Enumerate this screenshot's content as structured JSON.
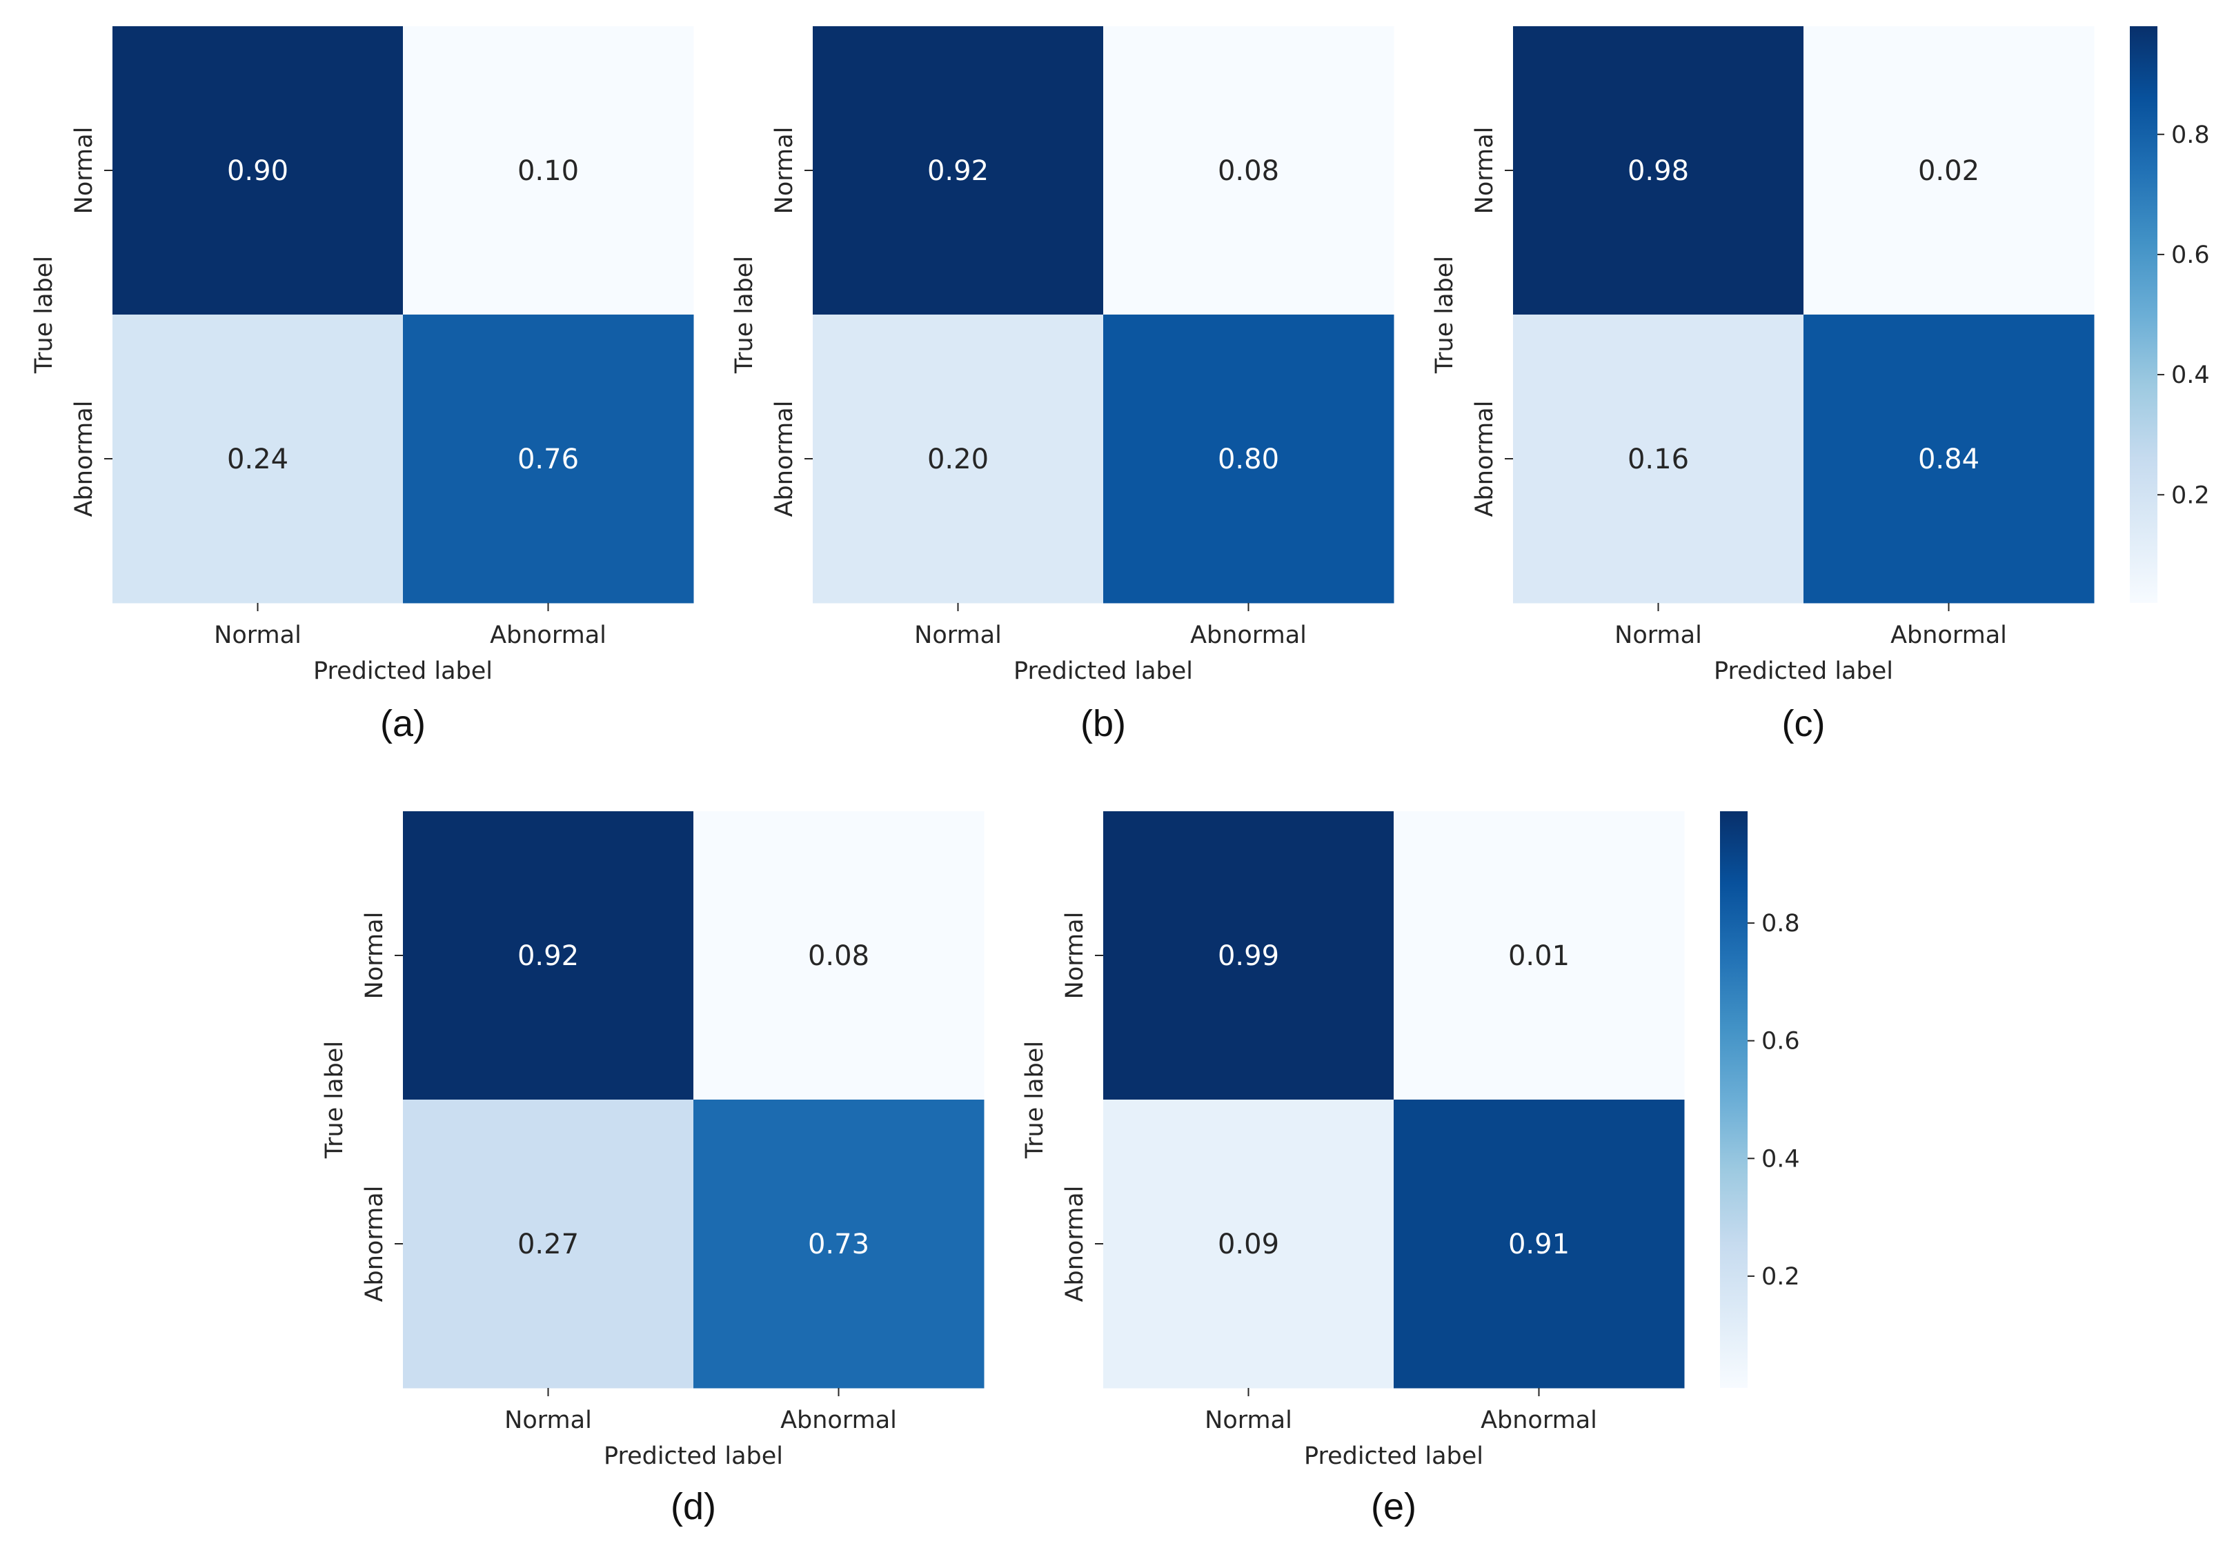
{
  "chart_data": [
    {
      "type": "heatmap",
      "panel": "(a)",
      "caption": "(a)",
      "rows": [
        "Normal",
        "Abnormal"
      ],
      "columns": [
        "Normal",
        "Abnormal"
      ],
      "values": [
        [
          0.9,
          0.1
        ],
        [
          0.24,
          0.76
        ]
      ],
      "labels": [
        [
          "0.90",
          "0.10"
        ],
        [
          "0.24",
          "0.76"
        ]
      ],
      "xlabel": "Predicted label",
      "ylabel": "True label",
      "colormap": "Blues"
    },
    {
      "type": "heatmap",
      "panel": "(b)",
      "caption": "(b)",
      "rows": [
        "Normal",
        "Abnormal"
      ],
      "columns": [
        "Normal",
        "Abnormal"
      ],
      "values": [
        [
          0.92,
          0.08
        ],
        [
          0.2,
          0.8
        ]
      ],
      "labels": [
        [
          "0.92",
          "0.08"
        ],
        [
          "0.20",
          "0.80"
        ]
      ],
      "xlabel": "Predicted label",
      "ylabel": "True label",
      "colormap": "Blues"
    },
    {
      "type": "heatmap",
      "panel": "(c)",
      "caption": "(c)",
      "rows": [
        "Normal",
        "Abnormal"
      ],
      "columns": [
        "Normal",
        "Abnormal"
      ],
      "values": [
        [
          0.98,
          0.02
        ],
        [
          0.16,
          0.84
        ]
      ],
      "labels": [
        [
          "0.98",
          "0.02"
        ],
        [
          "0.16",
          "0.84"
        ]
      ],
      "xlabel": "Predicted label",
      "ylabel": "True label",
      "colormap": "Blues",
      "colorbar": {
        "ticks": [
          "0.2",
          "0.4",
          "0.6",
          "0.8"
        ],
        "tick_values": [
          0.2,
          0.4,
          0.6,
          0.8
        ],
        "range": [
          0.02,
          0.98
        ]
      }
    },
    {
      "type": "heatmap",
      "panel": "(d)",
      "caption": "(d)",
      "rows": [
        "Normal",
        "Abnormal"
      ],
      "columns": [
        "Normal",
        "Abnormal"
      ],
      "values": [
        [
          0.92,
          0.08
        ],
        [
          0.27,
          0.73
        ]
      ],
      "labels": [
        [
          "0.92",
          "0.08"
        ],
        [
          "0.27",
          "0.73"
        ]
      ],
      "xlabel": "Predicted label",
      "ylabel": "True label",
      "colormap": "Blues"
    },
    {
      "type": "heatmap",
      "panel": "(e)",
      "caption": "(e)",
      "rows": [
        "Normal",
        "Abnormal"
      ],
      "columns": [
        "Normal",
        "Abnormal"
      ],
      "values": [
        [
          0.99,
          0.01
        ],
        [
          0.09,
          0.91
        ]
      ],
      "labels": [
        [
          "0.99",
          "0.01"
        ],
        [
          "0.09",
          "0.91"
        ]
      ],
      "xlabel": "Predicted label",
      "ylabel": "True label",
      "colormap": "Blues",
      "colorbar": {
        "ticks": [
          "0.2",
          "0.4",
          "0.6",
          "0.8"
        ],
        "tick_values": [
          0.2,
          0.4,
          0.6,
          0.8
        ],
        "range": [
          0.01,
          0.99
        ]
      }
    }
  ],
  "colors": {
    "blues_stops": [
      "#f7fbff",
      "#deebf7",
      "#c6dbef",
      "#9ecae1",
      "#6baed6",
      "#4292c6",
      "#2171b5",
      "#08519c",
      "#08306b"
    ],
    "text_dark": "#262626",
    "text_light": "#ffffff"
  }
}
